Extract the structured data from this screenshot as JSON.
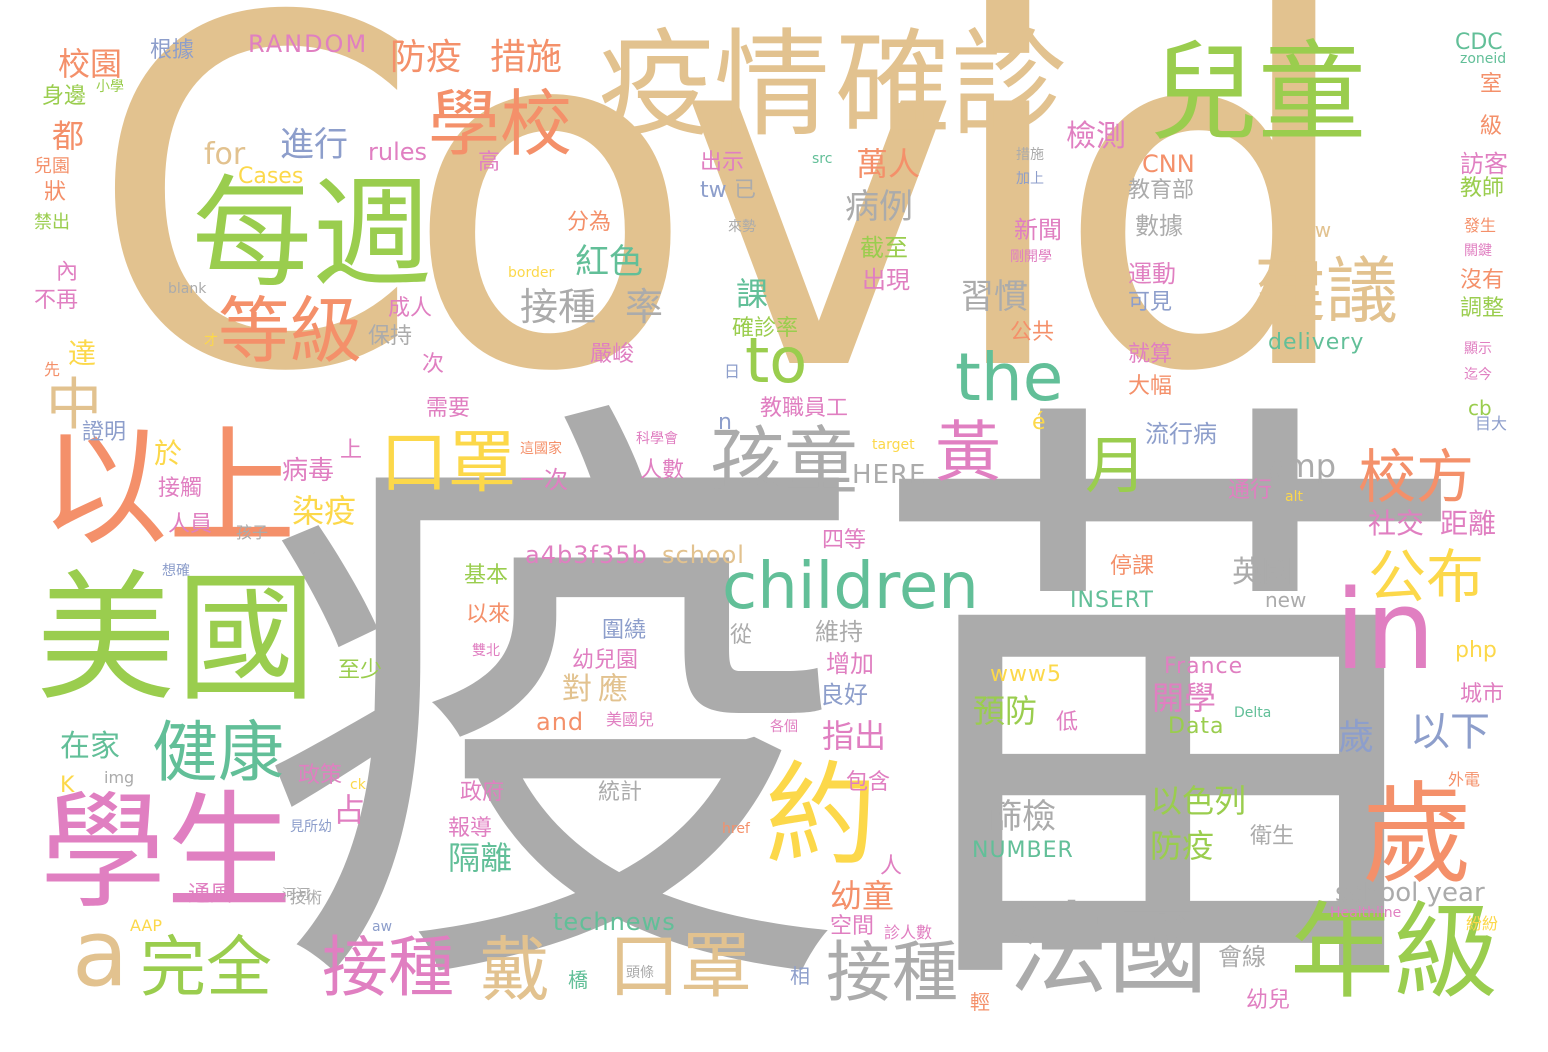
{
  "palette": {
    "tan": "#E2C28F",
    "gray": "#ABABAB",
    "green": "#9ACD4E",
    "pink": "#E07FC1",
    "orange": "#F4906A",
    "teal": "#62BF98",
    "yellow": "#FCD84A",
    "blue": "#8D9ECB"
  },
  "words": [
    {
      "t": "Covid",
      "c": "tan"
    },
    {
      "t": "疫苗",
      "c": "gray"
    },
    {
      "t": "疫情",
      "c": "tan"
    },
    {
      "t": "確診",
      "c": "tan"
    },
    {
      "t": "兒童",
      "c": "green"
    },
    {
      "t": "每週",
      "c": "green"
    },
    {
      "t": "以上",
      "c": "orange"
    },
    {
      "t": "美國",
      "c": "green"
    },
    {
      "t": "學生",
      "c": "pink"
    },
    {
      "t": "學校",
      "c": "orange"
    },
    {
      "t": "等級",
      "c": "orange"
    },
    {
      "t": "建議",
      "c": "tan"
    },
    {
      "t": "in",
      "c": "pink"
    },
    {
      "t": "歲",
      "c": "orange"
    },
    {
      "t": "約",
      "c": "yellow"
    },
    {
      "t": "法國",
      "c": "gray"
    },
    {
      "t": "年級",
      "c": "green"
    },
    {
      "t": "children",
      "c": "teal"
    },
    {
      "t": "the",
      "c": "teal"
    },
    {
      "t": "to",
      "c": "green"
    },
    {
      "t": "口罩",
      "c": "yellow"
    },
    {
      "t": "口罩",
      "c": "tan"
    },
    {
      "t": "孩童",
      "c": "gray"
    },
    {
      "t": "黃",
      "c": "pink"
    },
    {
      "t": "月",
      "c": "green"
    },
    {
      "t": "校方",
      "c": "orange"
    },
    {
      "t": "公布",
      "c": "yellow"
    },
    {
      "t": "健康",
      "c": "teal"
    },
    {
      "t": "完全",
      "c": "green"
    },
    {
      "t": "接種",
      "c": "pink"
    },
    {
      "t": "戴",
      "c": "tan"
    },
    {
      "t": "接種",
      "c": "gray"
    },
    {
      "t": "a",
      "c": "tan"
    },
    {
      "t": "中",
      "c": "tan"
    },
    {
      "t": "防疫",
      "c": "orange"
    },
    {
      "t": "措施",
      "c": "orange"
    },
    {
      "t": "校園",
      "c": "orange"
    },
    {
      "t": "根據",
      "c": "blue"
    },
    {
      "t": "RANDOM",
      "c": "pink"
    },
    {
      "t": "進行",
      "c": "blue"
    },
    {
      "t": "for",
      "c": "tan"
    },
    {
      "t": "rules",
      "c": "pink"
    },
    {
      "t": "Cases",
      "c": "yellow"
    },
    {
      "t": "都",
      "c": "orange"
    },
    {
      "t": "檢測",
      "c": "pink"
    },
    {
      "t": "高",
      "c": "pink"
    },
    {
      "t": "萬人",
      "c": "orange"
    },
    {
      "t": "病例",
      "c": "gray"
    },
    {
      "t": "紅色",
      "c": "teal"
    },
    {
      "t": "接種",
      "c": "gray"
    },
    {
      "t": "率",
      "c": "gray"
    },
    {
      "t": "課",
      "c": "teal"
    },
    {
      "t": "習慣",
      "c": "gray"
    },
    {
      "t": "CDC",
      "c": "teal"
    },
    {
      "t": "CNN",
      "c": "orange"
    },
    {
      "t": "教育部",
      "c": "gray"
    },
    {
      "t": "數據",
      "c": "gray"
    },
    {
      "t": "新聞",
      "c": "pink"
    },
    {
      "t": "www",
      "c": "tan"
    },
    {
      "t": "運動",
      "c": "pink"
    },
    {
      "t": "可見",
      "c": "blue"
    },
    {
      "t": "delivery",
      "c": "teal"
    },
    {
      "t": "就算",
      "c": "pink"
    },
    {
      "t": "大幅",
      "c": "orange"
    },
    {
      "t": "流行病",
      "c": "blue"
    },
    {
      "t": "amp",
      "c": "gray"
    },
    {
      "t": "HERE",
      "c": "gray"
    },
    {
      "t": "染疫",
      "c": "yellow"
    },
    {
      "t": "病毒",
      "c": "pink"
    },
    {
      "t": "a4b3f35b",
      "c": "pink"
    },
    {
      "t": "school",
      "c": "tan"
    },
    {
      "t": "一次",
      "c": "pink"
    },
    {
      "t": "社交",
      "c": "pink"
    },
    {
      "t": "距離",
      "c": "pink"
    },
    {
      "t": "英國",
      "c": "gray"
    },
    {
      "t": "INSERT",
      "c": "teal"
    },
    {
      "t": "new",
      "c": "gray"
    },
    {
      "t": "停課",
      "c": "orange"
    },
    {
      "t": "France",
      "c": "pink"
    },
    {
      "t": "www5",
      "c": "yellow"
    },
    {
      "t": "預防",
      "c": "green"
    },
    {
      "t": "開學",
      "c": "pink"
    },
    {
      "t": "Data",
      "c": "green"
    },
    {
      "t": "以下",
      "c": "blue"
    },
    {
      "t": "歲",
      "c": "blue"
    },
    {
      "t": "對",
      "c": "tan"
    },
    {
      "t": "應",
      "c": "tan"
    },
    {
      "t": "在家",
      "c": "teal"
    },
    {
      "t": "指出",
      "c": "pink"
    },
    {
      "t": "篩檢",
      "c": "gray"
    },
    {
      "t": "以色列",
      "c": "green"
    },
    {
      "t": "防疫",
      "c": "green"
    },
    {
      "t": "NUMBER",
      "c": "teal"
    },
    {
      "t": "隔離",
      "c": "teal"
    },
    {
      "t": "school year",
      "c": "gray"
    },
    {
      "t": "technews",
      "c": "teal"
    },
    {
      "t": "幼童",
      "c": "orange"
    },
    {
      "t": "會線",
      "c": "gray"
    },
    {
      "t": "統計",
      "c": "gray"
    },
    {
      "t": "政府",
      "c": "pink"
    },
    {
      "t": "報導",
      "c": "pink"
    },
    {
      "t": "占",
      "c": "pink"
    },
    {
      "t": "政策",
      "c": "pink"
    },
    {
      "t": "and",
      "c": "orange"
    },
    {
      "t": "增加",
      "c": "pink"
    },
    {
      "t": "良好",
      "c": "blue"
    },
    {
      "t": "維持",
      "c": "gray"
    },
    {
      "t": "從",
      "c": "gray"
    },
    {
      "t": "圍繞",
      "c": "blue"
    },
    {
      "t": "幼兒園",
      "c": "pink"
    },
    {
      "t": "基本",
      "c": "green"
    },
    {
      "t": "以來",
      "c": "orange"
    },
    {
      "t": "至少",
      "c": "green"
    },
    {
      "t": "人數",
      "c": "pink"
    },
    {
      "t": "接觸",
      "c": "pink"
    },
    {
      "t": "人員",
      "c": "pink"
    },
    {
      "t": "證明",
      "c": "blue"
    },
    {
      "t": "需要",
      "c": "pink"
    },
    {
      "t": "教職員工",
      "c": "pink"
    },
    {
      "t": "成人",
      "c": "pink"
    },
    {
      "t": "保持",
      "c": "gray"
    },
    {
      "t": "嚴峻",
      "c": "pink"
    },
    {
      "t": "出現",
      "c": "pink"
    },
    {
      "t": "截至",
      "c": "green"
    },
    {
      "t": "確診率",
      "c": "green"
    },
    {
      "t": "公共",
      "c": "orange"
    },
    {
      "t": "分為",
      "c": "orange"
    },
    {
      "t": "出示",
      "c": "pink"
    },
    {
      "t": "tw",
      "c": "blue"
    },
    {
      "t": "已",
      "c": "gray"
    },
    {
      "t": "身邊",
      "c": "green"
    },
    {
      "t": "兒園",
      "c": "orange"
    },
    {
      "t": "狀",
      "c": "orange"
    },
    {
      "t": "禁出",
      "c": "green"
    },
    {
      "t": "內",
      "c": "pink"
    },
    {
      "t": "不再",
      "c": "pink"
    },
    {
      "t": "先",
      "c": "orange"
    },
    {
      "t": "達",
      "c": "yellow"
    },
    {
      "t": "於",
      "c": "yellow"
    },
    {
      "t": "K",
      "c": "yellow"
    },
    {
      "t": "img",
      "c": "gray"
    },
    {
      "t": "通風",
      "c": "pink"
    },
    {
      "t": "AAP",
      "c": "yellow"
    },
    {
      "t": "技術",
      "c": "gray"
    },
    {
      "t": "室",
      "c": "orange"
    },
    {
      "t": "級",
      "c": "orange"
    },
    {
      "t": "訪客",
      "c": "pink"
    },
    {
      "t": "教師",
      "c": "green"
    },
    {
      "t": "發生",
      "c": "orange"
    },
    {
      "t": "沒有",
      "c": "orange"
    },
    {
      "t": "調整",
      "c": "green"
    },
    {
      "t": "php",
      "c": "yellow"
    },
    {
      "t": "城市",
      "c": "pink"
    },
    {
      "t": "Delta",
      "c": "teal"
    },
    {
      "t": "cb",
      "c": "green"
    },
    {
      "t": "衛生",
      "c": "gray"
    },
    {
      "t": "外電",
      "c": "orange"
    },
    {
      "t": "Healthline",
      "c": "pink"
    },
    {
      "t": "紛紛",
      "c": "yellow"
    },
    {
      "t": "幼兒",
      "c": "pink"
    },
    {
      "t": "頭條",
      "c": "gray"
    },
    {
      "t": "橋",
      "c": "teal"
    },
    {
      "t": "相",
      "c": "blue"
    },
    {
      "t": "輕",
      "c": "orange"
    },
    {
      "t": "四等",
      "c": "pink"
    },
    {
      "t": "仍",
      "c": "gray"
    },
    {
      "t": "上",
      "c": "pink"
    },
    {
      "t": "孩子",
      "c": "gray"
    },
    {
      "t": "空間",
      "c": "pink"
    },
    {
      "t": "診人數",
      "c": "pink"
    },
    {
      "t": "人",
      "c": "pink"
    },
    {
      "t": "包含",
      "c": "pink"
    },
    {
      "t": "低",
      "c": "pink"
    },
    {
      "t": "美國兒",
      "c": "pink"
    },
    {
      "t": "目大",
      "c": "blue"
    },
    {
      "t": "n",
      "c": "blue"
    },
    {
      "t": "日",
      "c": "blue"
    },
    {
      "t": "次",
      "c": "pink"
    },
    {
      "t": "é",
      "c": "yellow"
    },
    {
      "t": "target",
      "c": "yellow"
    },
    {
      "t": "alt",
      "c": "yellow"
    },
    {
      "t": "通行",
      "c": "pink"
    },
    {
      "t": "zoneid",
      "c": "teal"
    },
    {
      "t": "小學",
      "c": "green"
    },
    {
      "t": "src",
      "c": "teal"
    },
    {
      "t": "措施",
      "c": "gray"
    },
    {
      "t": "加上",
      "c": "blue"
    },
    {
      "t": "來勢",
      "c": "gray"
    },
    {
      "t": "剛開學",
      "c": "pink"
    },
    {
      "t": "border",
      "c": "yellow"
    },
    {
      "t": "blank",
      "c": "gray"
    },
    {
      "t": "才",
      "c": "yellow"
    },
    {
      "t": "顯示",
      "c": "pink"
    },
    {
      "t": "迄今",
      "c": "pink"
    },
    {
      "t": "關鍵",
      "c": "pink"
    },
    {
      "t": "ck",
      "c": "yellow"
    },
    {
      "t": "見所幼",
      "c": "blue"
    },
    {
      "t": "河河",
      "c": "gray"
    },
    {
      "t": "aw",
      "c": "blue"
    },
    {
      "t": "href",
      "c": "orange"
    },
    {
      "t": "各個",
      "c": "pink"
    },
    {
      "t": "想確",
      "c": "blue"
    },
    {
      "t": "科學會",
      "c": "pink"
    },
    {
      "t": "雙北",
      "c": "pink"
    },
    {
      "t": "這國家",
      "c": "orange"
    }
  ]
}
